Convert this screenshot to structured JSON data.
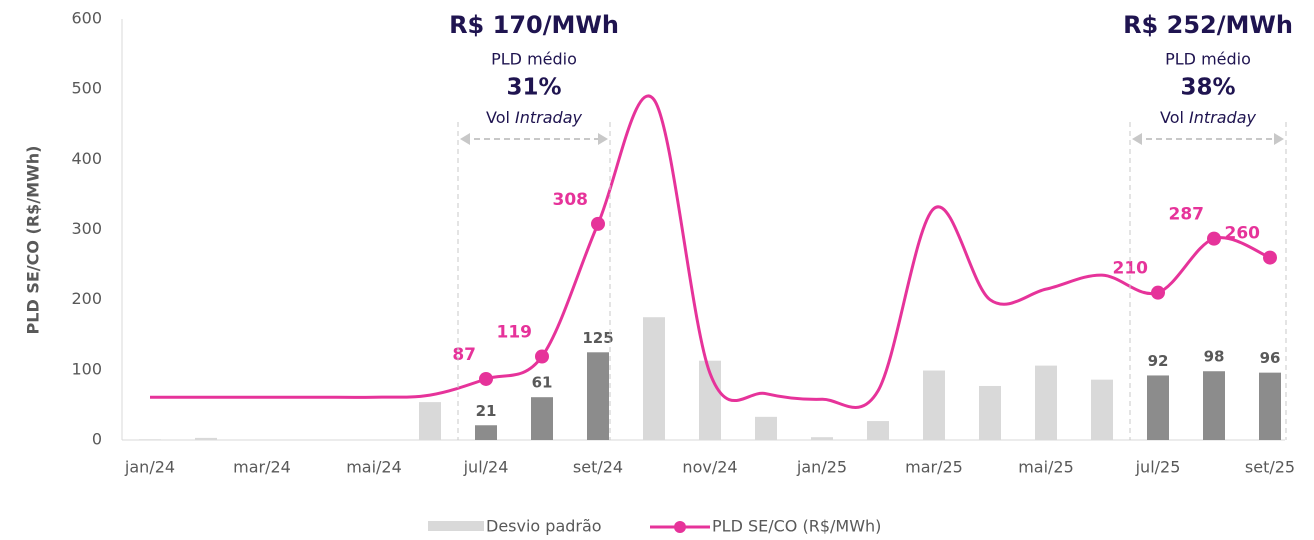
{
  "chart_data": {
    "type": "bar_line",
    "y_axis_label": "PLD SE/CO (R$/MWh)",
    "categories": [
      "jan/24",
      null,
      "mar/24",
      null,
      "mai/24",
      null,
      "jul/24",
      null,
      "set/24",
      null,
      "nov/24",
      null,
      "jan/25",
      null,
      "mar/25",
      null,
      "mai/25",
      null,
      "jul/25",
      null,
      "set/25"
    ],
    "ylim": [
      0,
      600
    ],
    "yticks": [
      0,
      100,
      200,
      300,
      400,
      500,
      600
    ],
    "series": [
      {
        "name": "Desvio padrão",
        "type": "bar",
        "color": "#d9d9d9",
        "highlight_color": "#8c8c8c",
        "highlight": [
          false,
          false,
          false,
          false,
          false,
          false,
          true,
          true,
          true,
          false,
          false,
          false,
          false,
          false,
          false,
          false,
          false,
          false,
          true,
          true,
          true
        ],
        "values": [
          1,
          3,
          0,
          0,
          0,
          54,
          21,
          61,
          125,
          175,
          113,
          33,
          4,
          27,
          99,
          77,
          106,
          86,
          92,
          98,
          96
        ],
        "value_labels": [
          null,
          null,
          null,
          null,
          null,
          null,
          "21",
          "61",
          "125",
          null,
          null,
          null,
          null,
          null,
          null,
          null,
          null,
          null,
          "92",
          "98",
          "96"
        ]
      },
      {
        "name": "PLD SE/CO (R$/MWh)",
        "type": "line",
        "color": "#e6339a",
        "values": [
          61,
          61,
          61,
          61,
          61,
          64,
          87,
          119,
          308,
          485,
          95,
          66,
          58,
          70,
          330,
          200,
          215,
          235,
          210,
          287,
          260
        ],
        "value_labels": [
          null,
          null,
          null,
          null,
          null,
          null,
          "87",
          "119",
          "308",
          null,
          null,
          null,
          null,
          null,
          null,
          null,
          null,
          null,
          "210",
          "287",
          "260"
        ]
      }
    ],
    "annotations": [
      {
        "price": "R$ 170/MWh",
        "price_label": "PLD médio",
        "vol": "31%",
        "vol_prefix": "Vol",
        "vol_italic": "Intraday"
      },
      {
        "price": "R$ 252/MWh",
        "price_label": "PLD médio",
        "vol": "38%",
        "vol_prefix": "Vol",
        "vol_italic": "Intraday"
      }
    ]
  }
}
